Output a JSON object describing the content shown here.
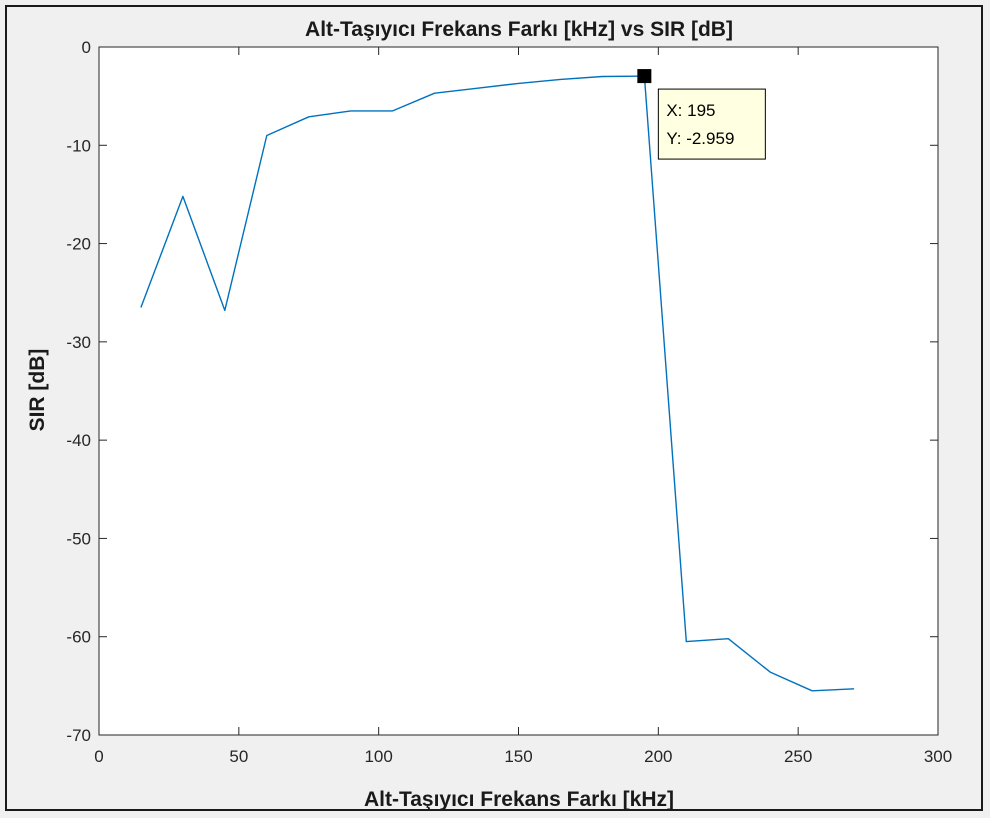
{
  "chart_data": {
    "type": "line",
    "title": "Alt-Taşıyıcı Frekans Farkı [kHz] vs SIR [dB]",
    "xlabel": "Alt-Taşıyıcı Frekans Farkı [kHz]",
    "ylabel": "SIR [dB]",
    "xlim": [
      0,
      300
    ],
    "ylim": [
      -70,
      0
    ],
    "xticks": [
      0,
      50,
      100,
      150,
      200,
      250,
      300
    ],
    "yticks": [
      0,
      -10,
      -20,
      -30,
      -40,
      -50,
      -60,
      -70
    ],
    "xtick_labels": [
      "0",
      "50",
      "100",
      "150",
      "200",
      "250",
      "300"
    ],
    "ytick_labels": [
      "0",
      "-10",
      "-20",
      "-30",
      "-40",
      "-50",
      "-60",
      "-70"
    ],
    "grid": false,
    "series": [
      {
        "color": "#0072bd",
        "x": [
          15,
          30,
          45,
          60,
          75,
          90,
          105,
          120,
          135,
          150,
          165,
          180,
          195,
          210,
          225,
          240,
          255,
          270
        ],
        "y": [
          -26.5,
          -15.2,
          -26.8,
          -9.0,
          -7.1,
          -6.5,
          -6.5,
          -4.7,
          -4.2,
          -3.7,
          -3.3,
          -3.0,
          -2.959,
          -60.5,
          -60.2,
          -63.6,
          -65.5,
          -65.3
        ]
      }
    ],
    "datatip": {
      "x": 195,
      "y": -2.959,
      "label_x": "X: 195",
      "label_y": "Y: -2.959"
    }
  },
  "colors": {
    "background": "#f0f0f0",
    "axes_background": "#ffffff",
    "line": "#0072bd",
    "tip_background": "#ffffe1"
  }
}
